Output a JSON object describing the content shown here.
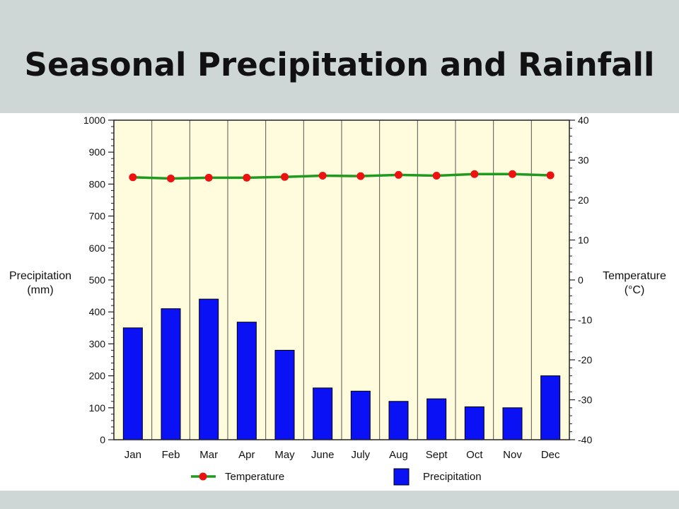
{
  "slide": {
    "title": "Seasonal Precipitation and Rainfall"
  },
  "colors": {
    "band": "#cfd6d6",
    "plot_background": "#fefcdc",
    "bar": "#0a12f5",
    "temperature_line": "#1e9a1e",
    "temperature_marker": "#ee1111",
    "grid": "#555555"
  },
  "chart_data": {
    "type": "bar",
    "categories": [
      "Jan",
      "Feb",
      "Mar",
      "Apr",
      "May",
      "June",
      "July",
      "Aug",
      "Sept",
      "Oct",
      "Nov",
      "Dec"
    ],
    "series": [
      {
        "name": "Precipitation",
        "type": "bar",
        "axis": "left",
        "values": [
          350,
          410,
          440,
          368,
          280,
          162,
          152,
          120,
          128,
          103,
          100,
          200
        ]
      },
      {
        "name": "Temperature",
        "type": "line",
        "axis": "right",
        "values": [
          25.7,
          25.4,
          25.6,
          25.6,
          25.8,
          26.1,
          26.0,
          26.3,
          26.1,
          26.5,
          26.5,
          26.2
        ]
      }
    ],
    "left_axis": {
      "label_lines": [
        "Precipitation",
        "(mm)"
      ],
      "range": [
        0,
        1000
      ],
      "ticks": [
        "0",
        "100",
        "200",
        "300",
        "400",
        "500",
        "600",
        "700",
        "800",
        "900",
        "1000"
      ]
    },
    "right_axis": {
      "label_lines": [
        "Temperature",
        "(°C)"
      ],
      "range": [
        -40,
        40
      ],
      "ticks": [
        "-40",
        "-30",
        "-20",
        "-10",
        "0",
        "10",
        "20",
        "30",
        "40"
      ]
    },
    "legend": {
      "placement": "bottom",
      "items": [
        "Temperature",
        "Precipitation"
      ]
    },
    "vertical_gridlines": true
  }
}
